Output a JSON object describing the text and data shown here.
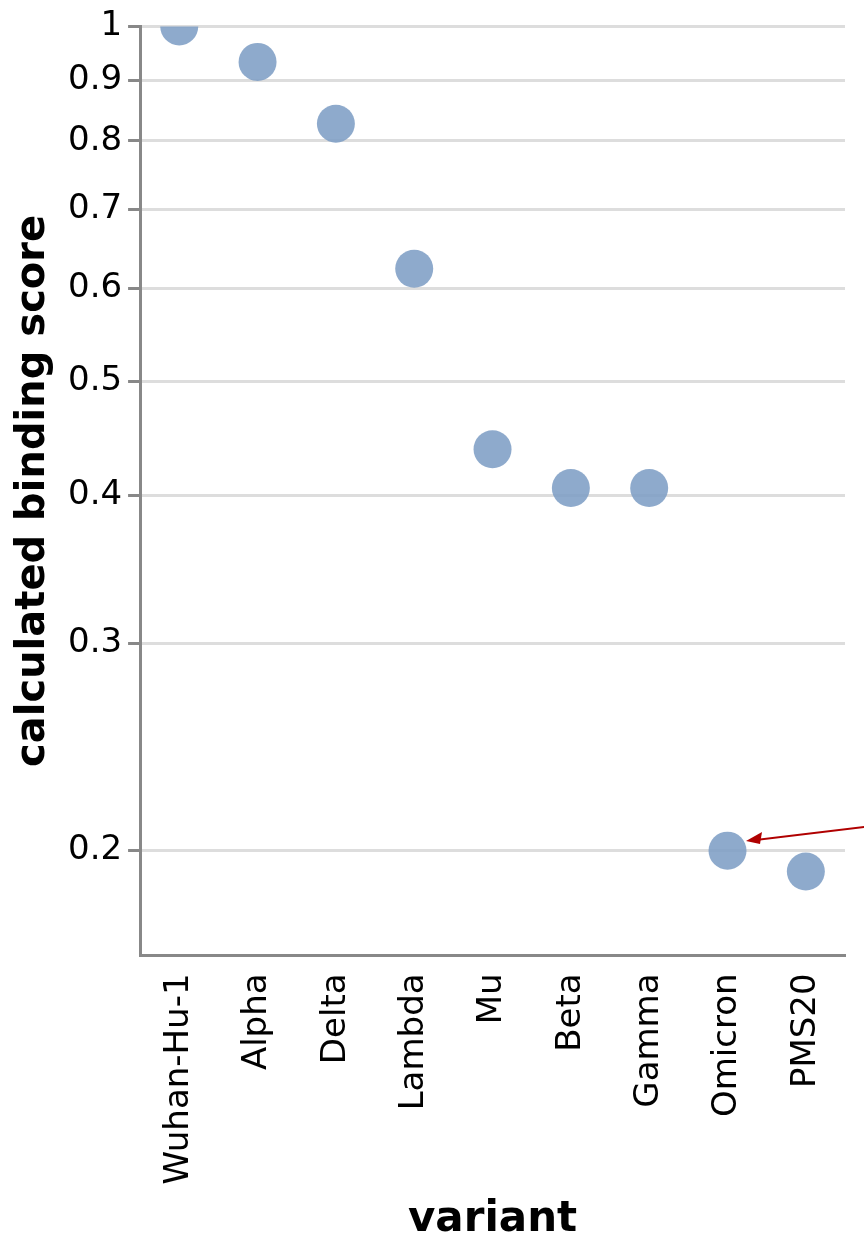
{
  "chart_data": {
    "type": "scatter",
    "xlabel": "variant",
    "ylabel": "calculated binding score",
    "categories": [
      "Wuhan-Hu-1",
      "Alpha",
      "Delta",
      "Lambda",
      "Mu",
      "Beta",
      "Gamma",
      "Omicron",
      "PMS20"
    ],
    "values": [
      1.0,
      0.933,
      0.827,
      0.623,
      0.438,
      0.406,
      0.406,
      0.2,
      0.192
    ],
    "color": "#7d9dc4",
    "log": "y",
    "ylim": [
      0.163,
      1
    ],
    "yticks": [
      0.2,
      0.3,
      0.4,
      0.5,
      0.6,
      0.7,
      0.8,
      0.9,
      1
    ],
    "grid": "y",
    "marker": "circle"
  }
}
